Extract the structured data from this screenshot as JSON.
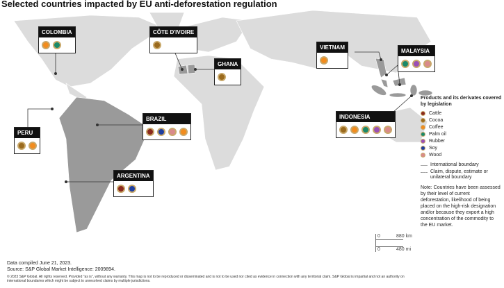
{
  "header": {
    "title": "Selected countries impacted by EU anti-deforestation regulation"
  },
  "countries": [
    {
      "name": "COLOMBIA",
      "products": [
        "#f28c1e",
        "#1a8a6a"
      ]
    },
    {
      "name": "CÔTE D'IVOIRE",
      "products": [
        "#9a6a1e"
      ]
    },
    {
      "name": "GHANA",
      "products": [
        "#9a6a1e"
      ]
    },
    {
      "name": "VIETNAM",
      "products": [
        "#f28c1e"
      ]
    },
    {
      "name": "MALAYSIA",
      "products": [
        "#1a8a6a",
        "#9a4fb5",
        "#d98a8a"
      ]
    },
    {
      "name": "PERU",
      "products": [
        "#9a6a1e",
        "#f28c1e"
      ]
    },
    {
      "name": "BRAZIL",
      "products": [
        "#8b2a1e",
        "#1f3fa0",
        "#d98a8a",
        "#f28c1e"
      ]
    },
    {
      "name": "INDONESIA",
      "products": [
        "#9a6a1e",
        "#f28c1e",
        "#1a8a6a",
        "#9a4fb5",
        "#d98a8a"
      ]
    },
    {
      "name": "ARGENTINA",
      "products": [
        "#8b2a1e",
        "#1f3fa0"
      ]
    }
  ],
  "legend": {
    "title": "Products and its derivates covered by legislation",
    "items": [
      {
        "label": "Cattle",
        "color": "#8b2a1e"
      },
      {
        "label": "Cocoa",
        "color": "#9a6a1e"
      },
      {
        "label": "Coffee",
        "color": "#f28c1e"
      },
      {
        "label": "Palm oil",
        "color": "#1a8a6a"
      },
      {
        "label": "Rubber",
        "color": "#9a4fb5"
      },
      {
        "label": "Soy",
        "color": "#1f3fa0"
      },
      {
        "label": "Wood",
        "color": "#d98a8a"
      }
    ],
    "boundaries": [
      "International boundary",
      "Claim, dispute, estimate or unilateral boundary"
    ]
  },
  "note": "Note: Countries have been assessed by their level of current deforestation, likelihood of being placed on the high-risk designation and/or because they export a high concentration of the commodity to the EU market.",
  "scale": {
    "km_zero": "0",
    "km": "880 km",
    "mi_zero": "0",
    "mi": "480 mi"
  },
  "footer": {
    "compiled": "Data compiled June 21, 2023.",
    "source": "Source: S&P Global Market Intelligence: 2009894.",
    "copyright": "© 2023 S&P Global. All rights reserved. Provided \"as is\", without any warranty. This map is not to be reproduced or disseminated and is not to be used nor cited as evidence in connection with any territorial claim. S&P Global is impartial and not an authority on international boundaries which might be subject to unresolved claims by multiple jurisdictions."
  }
}
